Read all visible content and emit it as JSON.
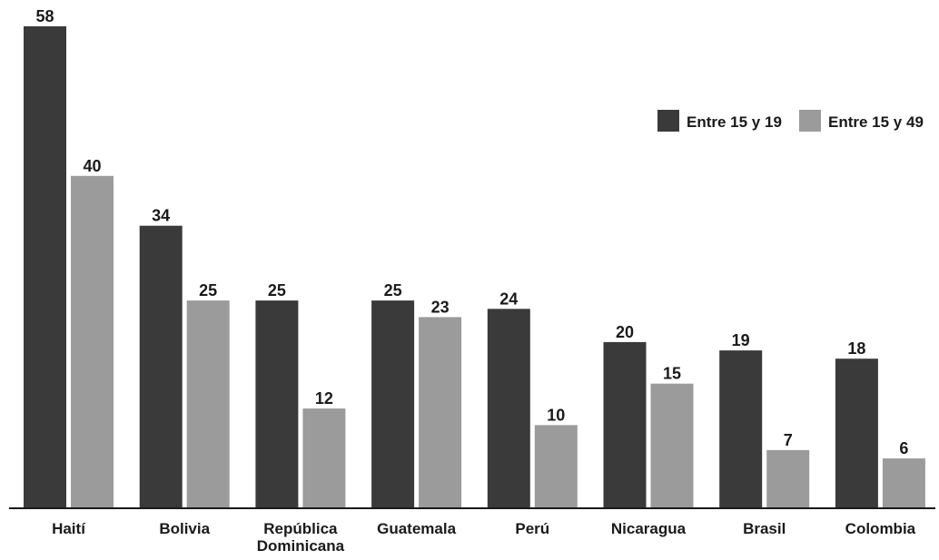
{
  "colors": {
    "series_dark": "#3a3a3a",
    "series_light": "#9b9b9b",
    "axis": "#1a1a1a"
  },
  "chart_data": {
    "type": "bar",
    "categories": [
      [
        "Haití"
      ],
      [
        "Bolivia"
      ],
      [
        "República",
        "Dominicana"
      ],
      [
        "Guatemala"
      ],
      [
        "Perú"
      ],
      [
        "Nicaragua"
      ],
      [
        "Brasil"
      ],
      [
        "Colombia"
      ]
    ],
    "series": [
      {
        "name": "Entre 15 y 19",
        "values": [
          58,
          34,
          25,
          25,
          24,
          20,
          19,
          18
        ]
      },
      {
        "name": "Entre 15 y 49",
        "values": [
          40,
          25,
          12,
          23,
          10,
          15,
          7,
          6
        ]
      }
    ],
    "ylim": [
      0,
      60
    ],
    "grid": false,
    "legend_position": "top-right",
    "data_labels": true
  }
}
